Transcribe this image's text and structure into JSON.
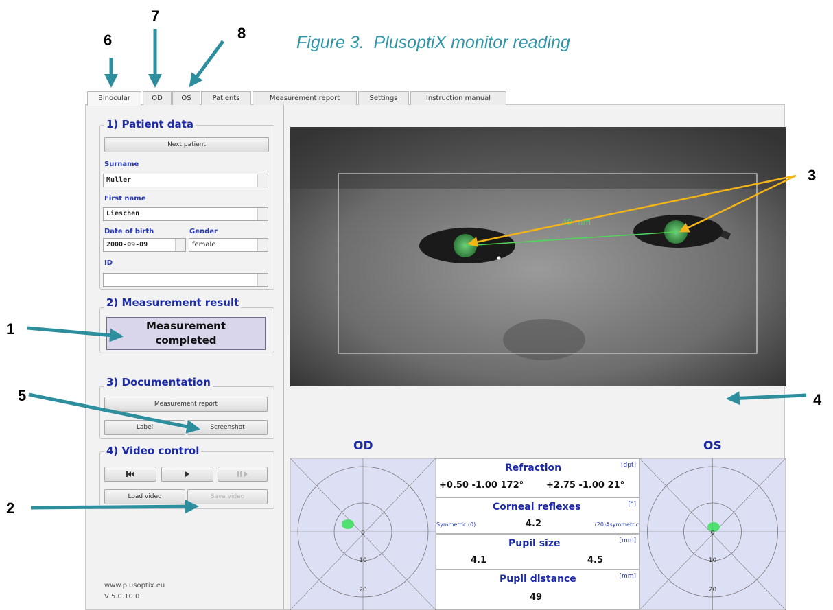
{
  "callouts": [
    "6",
    "7",
    "8",
    "1",
    "5",
    "3",
    "4",
    "2"
  ],
  "caption": "Figure 3.  PlusoptiX monitor reading",
  "tabs": [
    "Binocular",
    "OD",
    "OS",
    "Patients",
    "Measurement report",
    "Settings",
    "Instruction manual"
  ],
  "patient_data": {
    "title": "1) Patient data",
    "next_patient": "Next patient",
    "surname_label": "Surname",
    "surname": "Muller",
    "first_name_label": "First name",
    "first_name": "Lieschen",
    "dob_label": "Date of birth",
    "dob": "2000-09-09",
    "gender_label": "Gender",
    "gender": "female",
    "id_label": "ID"
  },
  "measurement_result": {
    "title": "2) Measurement result",
    "status": "Measurement completed"
  },
  "documentation": {
    "title": "3) Documentation",
    "buttons": [
      "Measurement report",
      "Label",
      "Screenshot"
    ]
  },
  "video_control": {
    "title": "4) Video control",
    "buttons": [
      "Load video",
      "Save video"
    ]
  },
  "footer": {
    "website": "www.plusoptix.eu",
    "version": "V 5.0.10.0"
  },
  "image": {
    "distance_label": "49 mm"
  },
  "results": {
    "od_label": "OD",
    "os_label": "OS",
    "refraction": {
      "title": "Refraction",
      "unit": "[dpt]",
      "od": "+0.50  -1.00 172°",
      "os": "+2.75  -1.00 21°"
    },
    "corneal_reflexes": {
      "title": "Corneal reflexes",
      "unit": "[°]",
      "left_scale": "Symmetric (0)",
      "value": "4.2",
      "right_scale": "(20)Asymmetric"
    },
    "pupil_size": {
      "title": "Pupil size",
      "unit": "[mm]",
      "od": "4.1",
      "os": "4.5"
    },
    "pupil_distance": {
      "title": "Pupil distance",
      "unit": "[mm]",
      "value": "49"
    },
    "plot_rings": [
      "0",
      "10",
      "20"
    ]
  }
}
